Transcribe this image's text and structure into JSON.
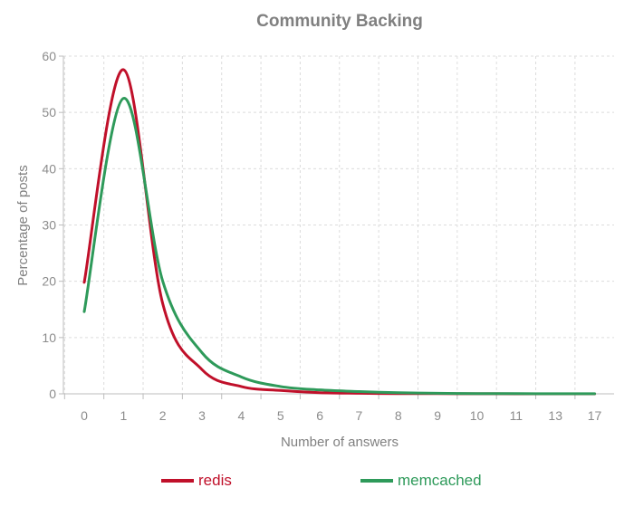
{
  "chart_data": {
    "type": "line",
    "title": "Community Backing",
    "xlabel": "Number of answers",
    "ylabel": "Percentage of posts",
    "categories": [
      "0",
      "1",
      "2",
      "3",
      "4",
      "5",
      "6",
      "7",
      "8",
      "9",
      "10",
      "11",
      "13",
      "17"
    ],
    "ylim": [
      0,
      60
    ],
    "yticks": [
      0,
      10,
      20,
      30,
      40,
      50,
      60
    ],
    "grid": true,
    "legend_position": "bottom",
    "series": [
      {
        "name": "redis",
        "color": "#c0102a",
        "values": [
          19.8,
          57.6,
          16.0,
          4.3,
          1.3,
          0.6,
          0.2,
          0.1,
          0.05,
          0.03,
          0.02,
          0.01,
          0.01,
          0.01
        ]
      },
      {
        "name": "memcached",
        "color": "#2e9a5a",
        "values": [
          14.6,
          52.5,
          20.0,
          7.3,
          3.0,
          1.3,
          0.7,
          0.4,
          0.2,
          0.1,
          0.05,
          0.03,
          0.02,
          0.02
        ]
      }
    ]
  }
}
